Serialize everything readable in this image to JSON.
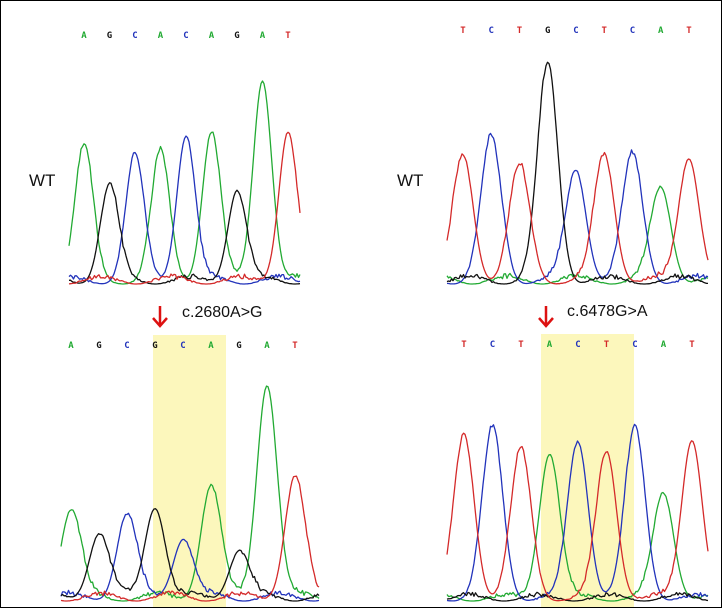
{
  "colors": {
    "A": "#22aa33",
    "C": "#2233bb",
    "G": "#111111",
    "T": "#d42a2a",
    "highlight": "#fbf6b0",
    "arrow": "#dd1111"
  },
  "panels": [
    {
      "id": "left-wt",
      "label": "WT",
      "bases": [
        "A",
        "G",
        "C",
        "A",
        "C",
        "A",
        "G",
        "A",
        "T"
      ],
      "peaks": [
        {
          "base": "A",
          "h": 0.66
        },
        {
          "base": "G",
          "h": 0.47
        },
        {
          "base": "C",
          "h": 0.61
        },
        {
          "base": "A",
          "h": 0.63
        },
        {
          "base": "C",
          "h": 0.72
        },
        {
          "base": "A",
          "h": 0.73
        },
        {
          "base": "G",
          "h": 0.45
        },
        {
          "base": "A",
          "h": 1.0
        },
        {
          "base": "T",
          "h": 0.74
        }
      ]
    },
    {
      "id": "left-mut",
      "mutation": "c.2680A>G",
      "bases": [
        "A",
        "G",
        "C",
        "G",
        "C",
        "A",
        "G",
        "A",
        "T"
      ],
      "highlight_bases": [
        3,
        5
      ],
      "peaks": [
        {
          "base": "A",
          "h": 0.41
        },
        {
          "base": "G",
          "h": 0.3
        },
        {
          "base": "C",
          "h": 0.38
        },
        {
          "base": "G",
          "h": 0.43
        },
        {
          "base": "C",
          "h": 0.28
        },
        {
          "base": "A",
          "h": 0.52
        },
        {
          "base": "G",
          "h": 0.22
        },
        {
          "base": "A",
          "h": 1.0
        },
        {
          "base": "T",
          "h": 0.56
        }
      ]
    },
    {
      "id": "right-wt",
      "label": "WT",
      "bases": [
        "T",
        "C",
        "T",
        "G",
        "C",
        "T",
        "C",
        "A",
        "T"
      ],
      "peaks": [
        {
          "base": "T",
          "h": 0.58
        },
        {
          "base": "C",
          "h": 0.66
        },
        {
          "base": "T",
          "h": 0.53
        },
        {
          "base": "G",
          "h": 1.0
        },
        {
          "base": "C",
          "h": 0.51
        },
        {
          "base": "T",
          "h": 0.58
        },
        {
          "base": "C",
          "h": 0.58
        },
        {
          "base": "A",
          "h": 0.43
        },
        {
          "base": "T",
          "h": 0.58
        }
      ]
    },
    {
      "id": "right-mut",
      "mutation": "c.6478G>A",
      "bases": [
        "T",
        "C",
        "T",
        "A",
        "C",
        "T",
        "C",
        "A",
        "T"
      ],
      "highlight_bases": [
        3,
        5
      ],
      "peaks": [
        {
          "base": "T",
          "h": 0.9
        },
        {
          "base": "C",
          "h": 0.94
        },
        {
          "base": "T",
          "h": 0.82
        },
        {
          "base": "A",
          "h": 0.81
        },
        {
          "base": "C",
          "h": 0.87
        },
        {
          "base": "T",
          "h": 0.81
        },
        {
          "base": "C",
          "h": 0.94
        },
        {
          "base": "A",
          "h": 0.58
        },
        {
          "base": "T",
          "h": 0.89
        }
      ]
    }
  ]
}
